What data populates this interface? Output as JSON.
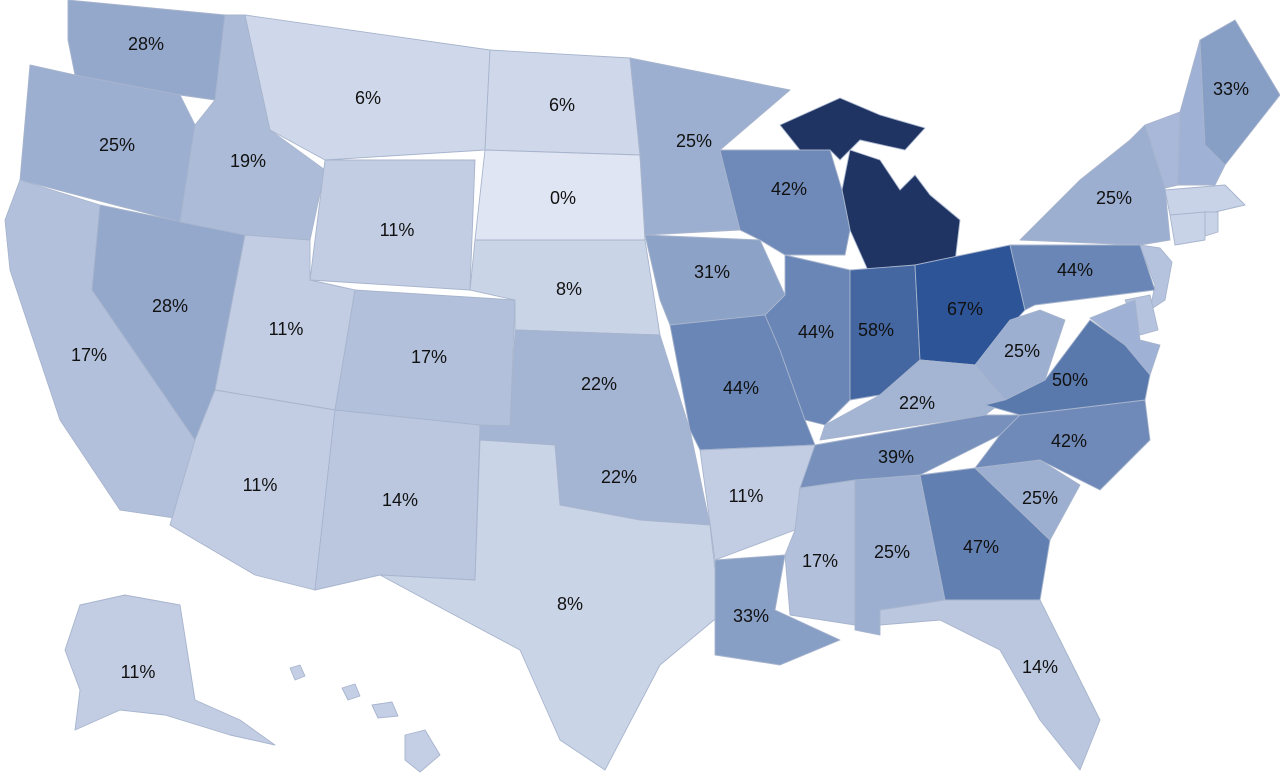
{
  "chart_data": {
    "type": "choropleth",
    "values": [
      28,
      25,
      17,
      28,
      19,
      6,
      11,
      11,
      11,
      17,
      14,
      6,
      0,
      8,
      22,
      22,
      8,
      25,
      31,
      44,
      11,
      33,
      42,
      44,
      58,
      67,
      22,
      39,
      17,
      25,
      47,
      14,
      25,
      42,
      50,
      25,
      44,
      25,
      33,
      11
    ],
    "value_labels": [
      "28%",
      "25%",
      "17%",
      "28%",
      "19%",
      "6%",
      "11%",
      "11%",
      "11%",
      "17%",
      "14%",
      "6%",
      "0%",
      "8%",
      "22%",
      "22%",
      "8%",
      "25%",
      "31%",
      "44%",
      "11%",
      "33%",
      "42%",
      "44%",
      "58%",
      "67%",
      "22%",
      "39%",
      "17%",
      "25%",
      "47%",
      "14%",
      "25%",
      "42%",
      "50%",
      "25%",
      "44%",
      "25%",
      "33%",
      "11%"
    ],
    "color_range": [
      "#dfe5f2",
      "#2c5496"
    ]
  }
}
